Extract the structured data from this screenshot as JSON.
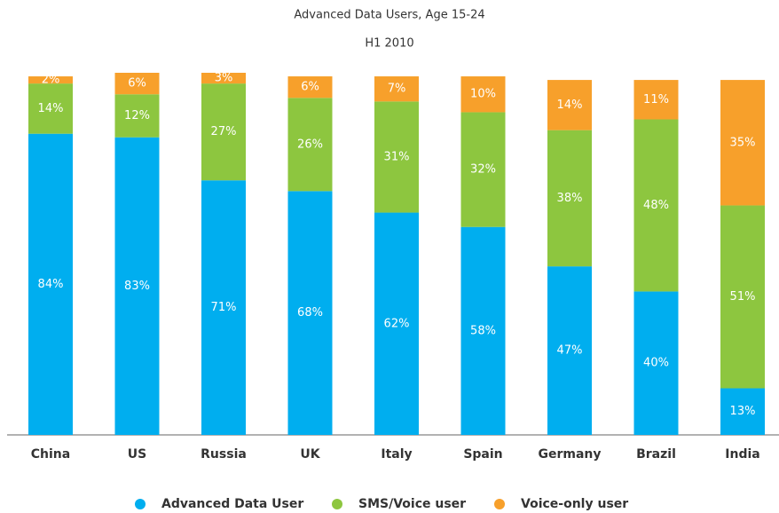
{
  "chart_data": {
    "type": "stacked_bar",
    "title": "Advanced Data Users, Age 15-24",
    "subtitle": "H1 2010",
    "categories": [
      "China",
      "US",
      "Russia",
      "UK",
      "Italy",
      "Spain",
      "Germany",
      "Brazil",
      "India"
    ],
    "series": [
      {
        "name": "Advanced Data User",
        "color": "#00aeef",
        "values": [
          84,
          83,
          71,
          68,
          62,
          58,
          47,
          40,
          13
        ],
        "value_labels": [
          "84%",
          "83%",
          "71%",
          "68%",
          "62%",
          "58%",
          "47%",
          "40%",
          "13%"
        ]
      },
      {
        "name": "SMS/Voice user",
        "color": "#8dc63f",
        "values": [
          14,
          12,
          27,
          26,
          31,
          32,
          38,
          48,
          51
        ],
        "value_labels": [
          "14%",
          "12%",
          "27%",
          "26%",
          "31%",
          "32%",
          "38%",
          "48%",
          "51%"
        ]
      },
      {
        "name": "Voice-only user",
        "color": "#f7a02b",
        "values": [
          2,
          6,
          3,
          6,
          7,
          10,
          14,
          11,
          35
        ],
        "value_labels": [
          "2%",
          "6%",
          "3%",
          "6%",
          "7%",
          "10%",
          "14%",
          "11%",
          "35%"
        ]
      }
    ]
  }
}
